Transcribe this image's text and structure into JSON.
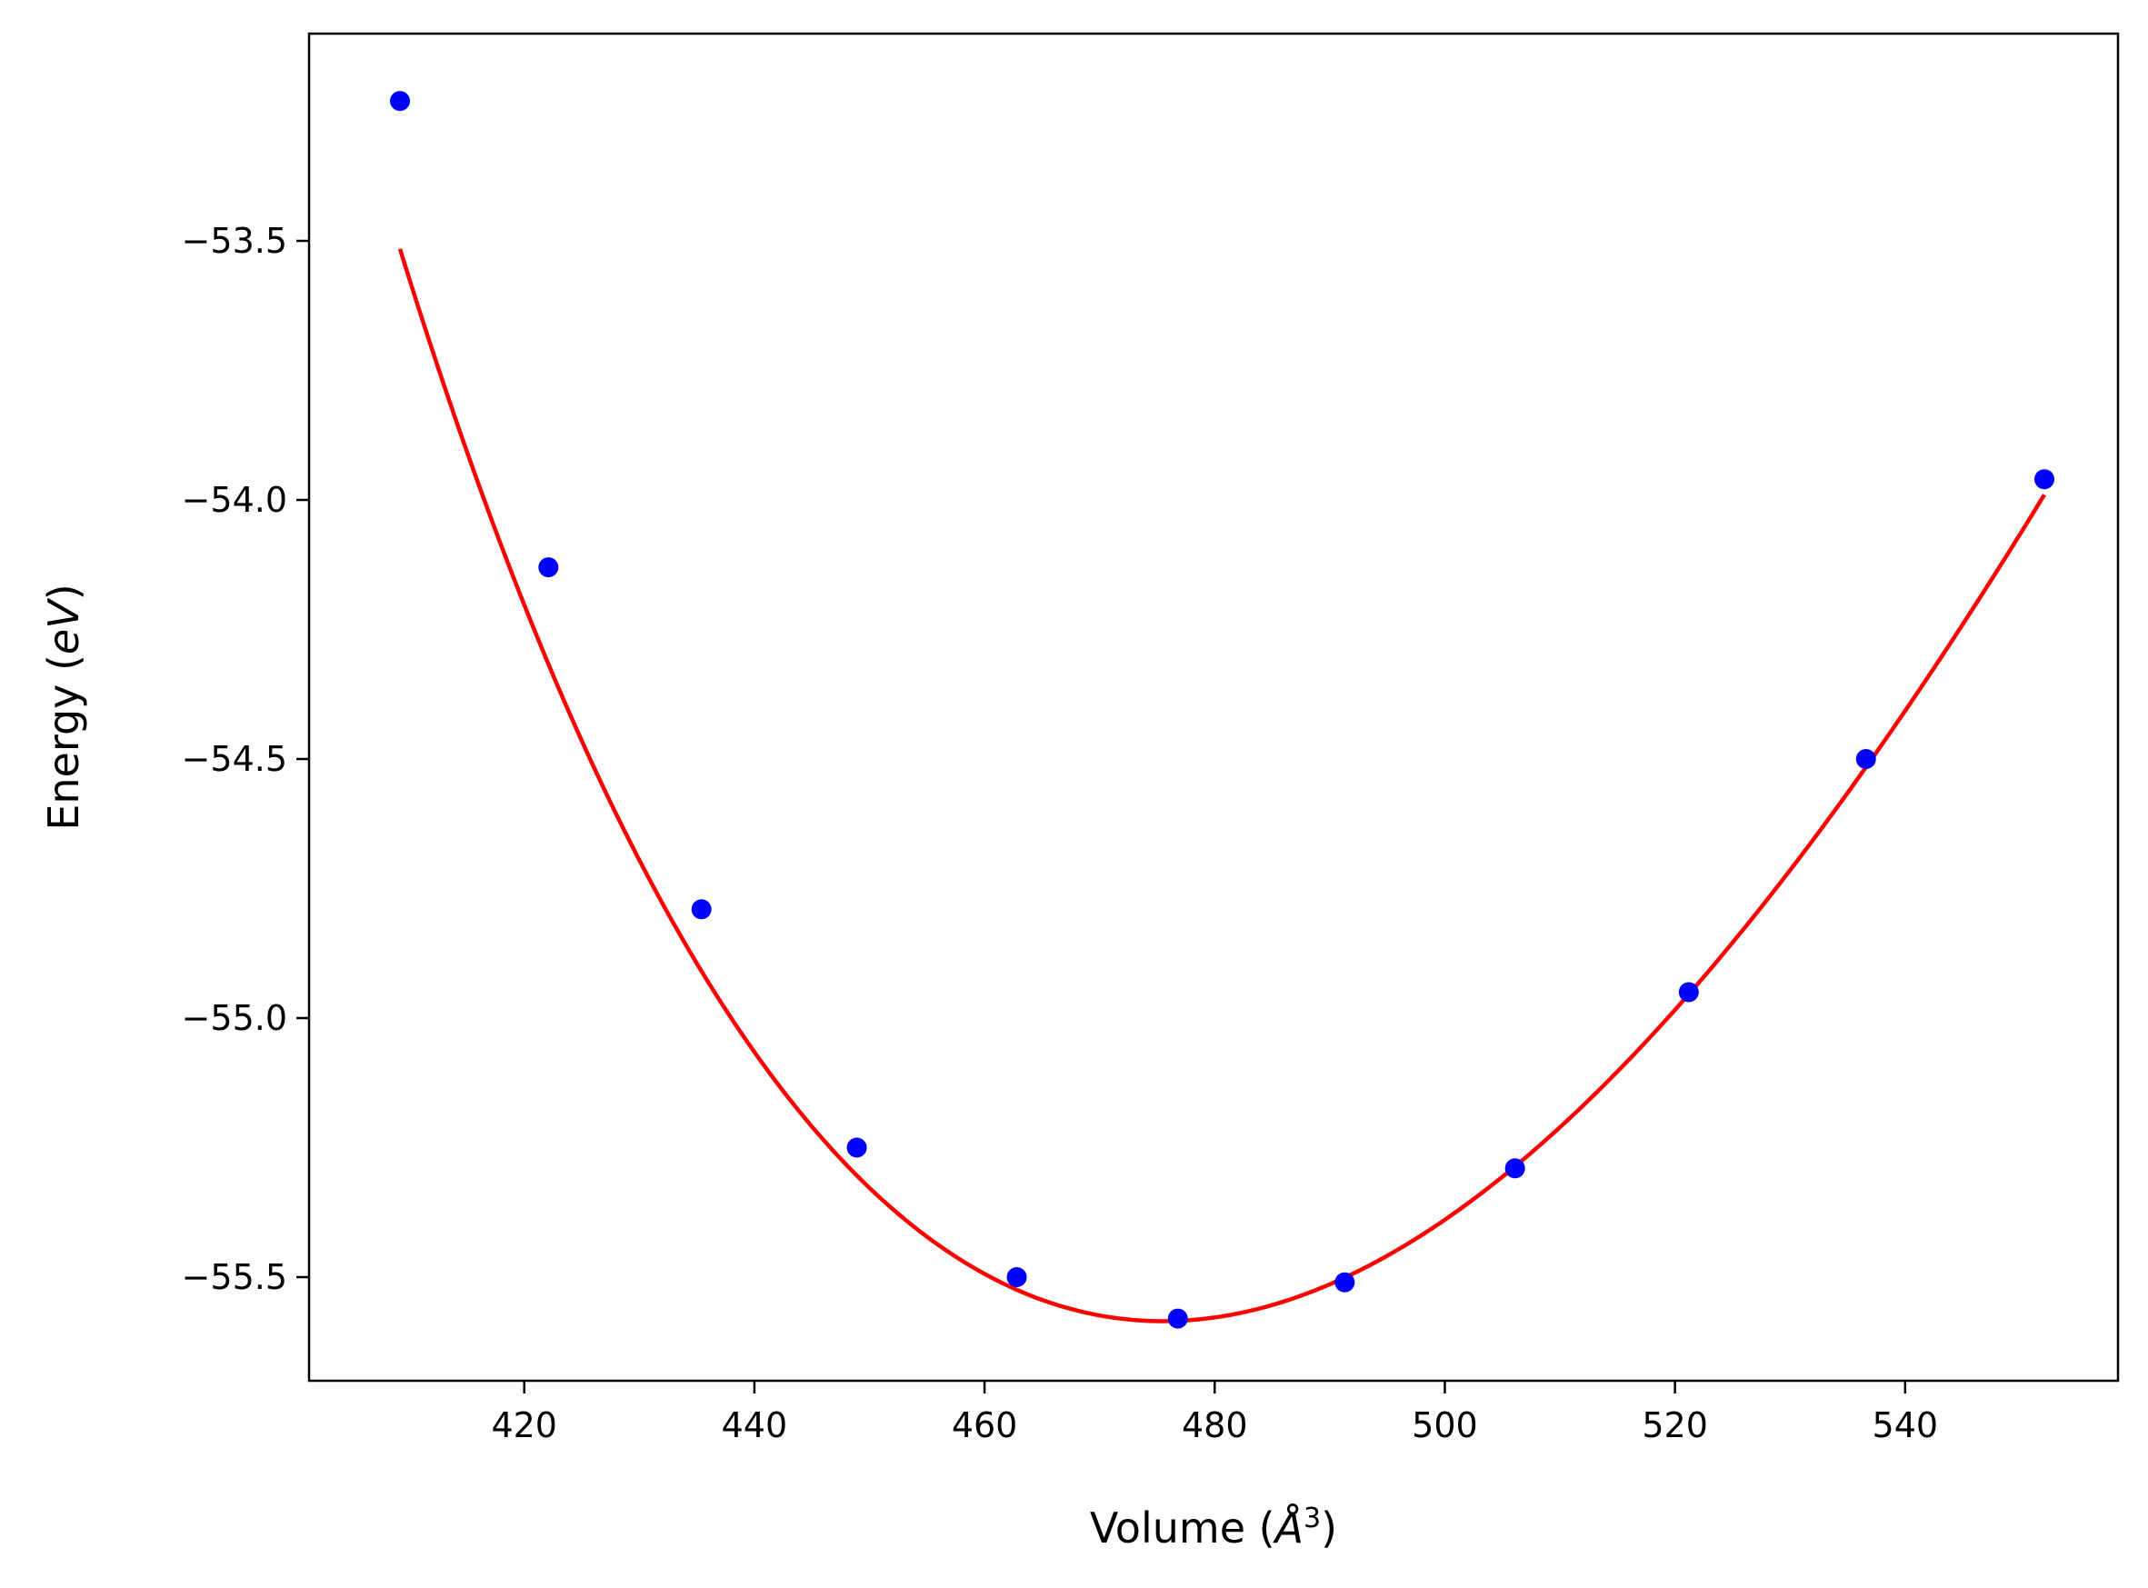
{
  "chart_data": {
    "type": "scatter",
    "title": "",
    "xlabel": "Volume (Å³)",
    "ylabel": "Energy (eV)",
    "xlabel_parts": {
      "pre": "Volume (",
      "sym": "Å",
      "sup": "3",
      "post": ")"
    },
    "ylabel_parts": {
      "pre": "Energy (",
      "sym": "eV",
      "post": ")"
    },
    "xlim": [
      401.3,
      558.5
    ],
    "ylim": [
      -55.7,
      -53.1
    ],
    "xticks": [
      420,
      440,
      460,
      480,
      500,
      520,
      540
    ],
    "yticks": [
      -53.5,
      -54.0,
      -54.5,
      -55.0,
      -55.5
    ],
    "xtick_labels": [
      "420",
      "440",
      "460",
      "480",
      "500",
      "520",
      "540"
    ],
    "ytick_labels": [
      "−53.5",
      "−54.0",
      "−54.5",
      "−55.0",
      "−55.5"
    ],
    "grid": false,
    "legend": "none",
    "series": [
      {
        "type": "scatter",
        "color": "#0000ff",
        "x": [
          409.2,
          422.1,
          435.4,
          448.9,
          462.8,
          476.8,
          491.3,
          506.1,
          521.2,
          536.6,
          552.1
        ],
        "y": [
          -53.23,
          -54.13,
          -54.79,
          -55.25,
          -55.5,
          -55.58,
          -55.51,
          -55.29,
          -54.95,
          -54.5,
          -53.96
        ]
      },
      {
        "type": "line",
        "color": "#ff0000",
        "fit": {
          "kind": "birch-murnaghan",
          "E0": -55.585,
          "V0": 475.5,
          "B0": 0.34,
          "B0p": 4.5
        },
        "x_range": [
          409.2,
          552.1
        ]
      }
    ]
  }
}
